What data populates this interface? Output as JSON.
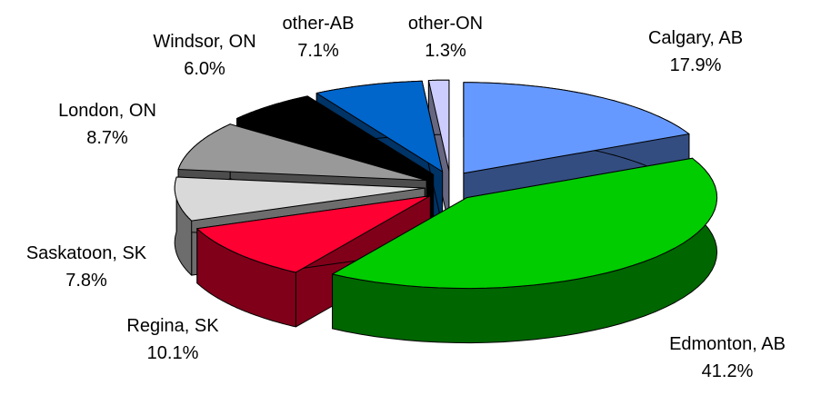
{
  "chart_data": {
    "type": "pie",
    "categories": [
      "Calgary, AB",
      "Edmonton, AB",
      "Regina, SK",
      "Saskatoon, SK",
      "London, ON",
      "Windsor, ON",
      "other-AB",
      "other-ON"
    ],
    "values": [
      17.9,
      41.2,
      10.1,
      7.8,
      8.7,
      6.0,
      7.1,
      1.3
    ],
    "value_labels": [
      "17.9%",
      "41.2%",
      "10.1%",
      "7.8%",
      "8.7%",
      "6.0%",
      "7.1%",
      "1.3%"
    ],
    "colors": [
      "#6699ff",
      "#00cc00",
      "#ff0033",
      "#d9d9d9",
      "#999999",
      "#000000",
      "#0066cc",
      "#ccccff"
    ]
  }
}
